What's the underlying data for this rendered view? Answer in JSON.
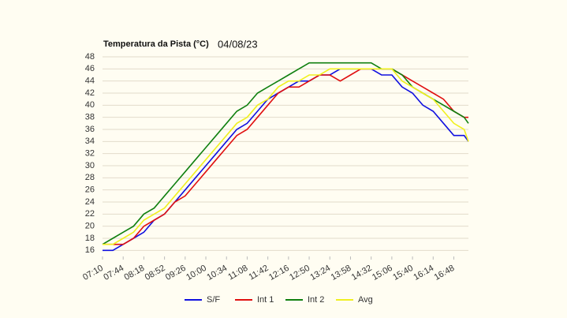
{
  "chart_data": {
    "type": "line",
    "title": "Temperatura da Pista (°C)",
    "subtitle": "04/08/23",
    "x": [
      "07:10",
      "07:27",
      "07:44",
      "08:01",
      "08:18",
      "08:35",
      "08:52",
      "09:09",
      "09:26",
      "09:43",
      "10:00",
      "10:17",
      "10:34",
      "10:51",
      "11:08",
      "11:25",
      "11:42",
      "11:59",
      "12:16",
      "12:33",
      "12:50",
      "13:07",
      "13:24",
      "13:41",
      "13:58",
      "14:15",
      "14:32",
      "14:49",
      "15:06",
      "15:23",
      "15:40",
      "15:57",
      "16:14",
      "16:31",
      "16:48",
      "17:05",
      "17:12"
    ],
    "xlim": [
      "07:10",
      "17:12"
    ],
    "xticks": [
      "07:10",
      "07:44",
      "08:18",
      "08:52",
      "09:26",
      "10:00",
      "10:34",
      "11:08",
      "11:42",
      "12:16",
      "12:50",
      "13:24",
      "13:58",
      "14:32",
      "15:06",
      "15:40",
      "16:14",
      "16:48"
    ],
    "ylim": [
      15,
      48
    ],
    "yticks": [
      16,
      18,
      20,
      22,
      24,
      26,
      28,
      30,
      32,
      34,
      36,
      38,
      40,
      42,
      44,
      46,
      48
    ],
    "grid": true,
    "legend": "bottom",
    "series": [
      {
        "name": "S/F",
        "color": "#1010e0",
        "values": [
          16,
          16,
          17,
          18,
          19,
          21,
          22,
          24,
          26,
          28,
          30,
          32,
          34,
          36,
          37,
          39,
          41,
          42,
          43,
          44,
          44,
          45,
          45,
          46,
          46,
          46,
          46,
          45,
          45,
          43,
          42,
          40,
          39,
          37,
          35,
          35,
          34
        ]
      },
      {
        "name": "Int 1",
        "color": "#e01010",
        "values": [
          17,
          17,
          17,
          18,
          20,
          21,
          22,
          24,
          25,
          27,
          29,
          31,
          33,
          35,
          36,
          38,
          40,
          42,
          43,
          43,
          44,
          45,
          45,
          44,
          45,
          46,
          46,
          46,
          46,
          45,
          44,
          43,
          42,
          41,
          39,
          38,
          38
        ]
      },
      {
        "name": "Int 2",
        "color": "#108010",
        "values": [
          17,
          18,
          19,
          20,
          22,
          23,
          25,
          27,
          29,
          31,
          33,
          35,
          37,
          39,
          40,
          42,
          43,
          44,
          45,
          46,
          47,
          47,
          47,
          47,
          47,
          47,
          47,
          46,
          46,
          45,
          43,
          42,
          41,
          40,
          39,
          38,
          37
        ]
      },
      {
        "name": "Avg",
        "color": "#f0f020",
        "values": [
          17,
          17,
          18,
          19,
          21,
          22,
          23,
          25,
          27,
          29,
          31,
          33,
          35,
          37,
          38,
          40,
          41,
          43,
          44,
          44,
          45,
          45,
          46,
          46,
          46,
          46,
          46,
          46,
          46,
          44,
          43,
          42,
          41,
          39,
          37,
          36,
          34
        ]
      }
    ]
  }
}
